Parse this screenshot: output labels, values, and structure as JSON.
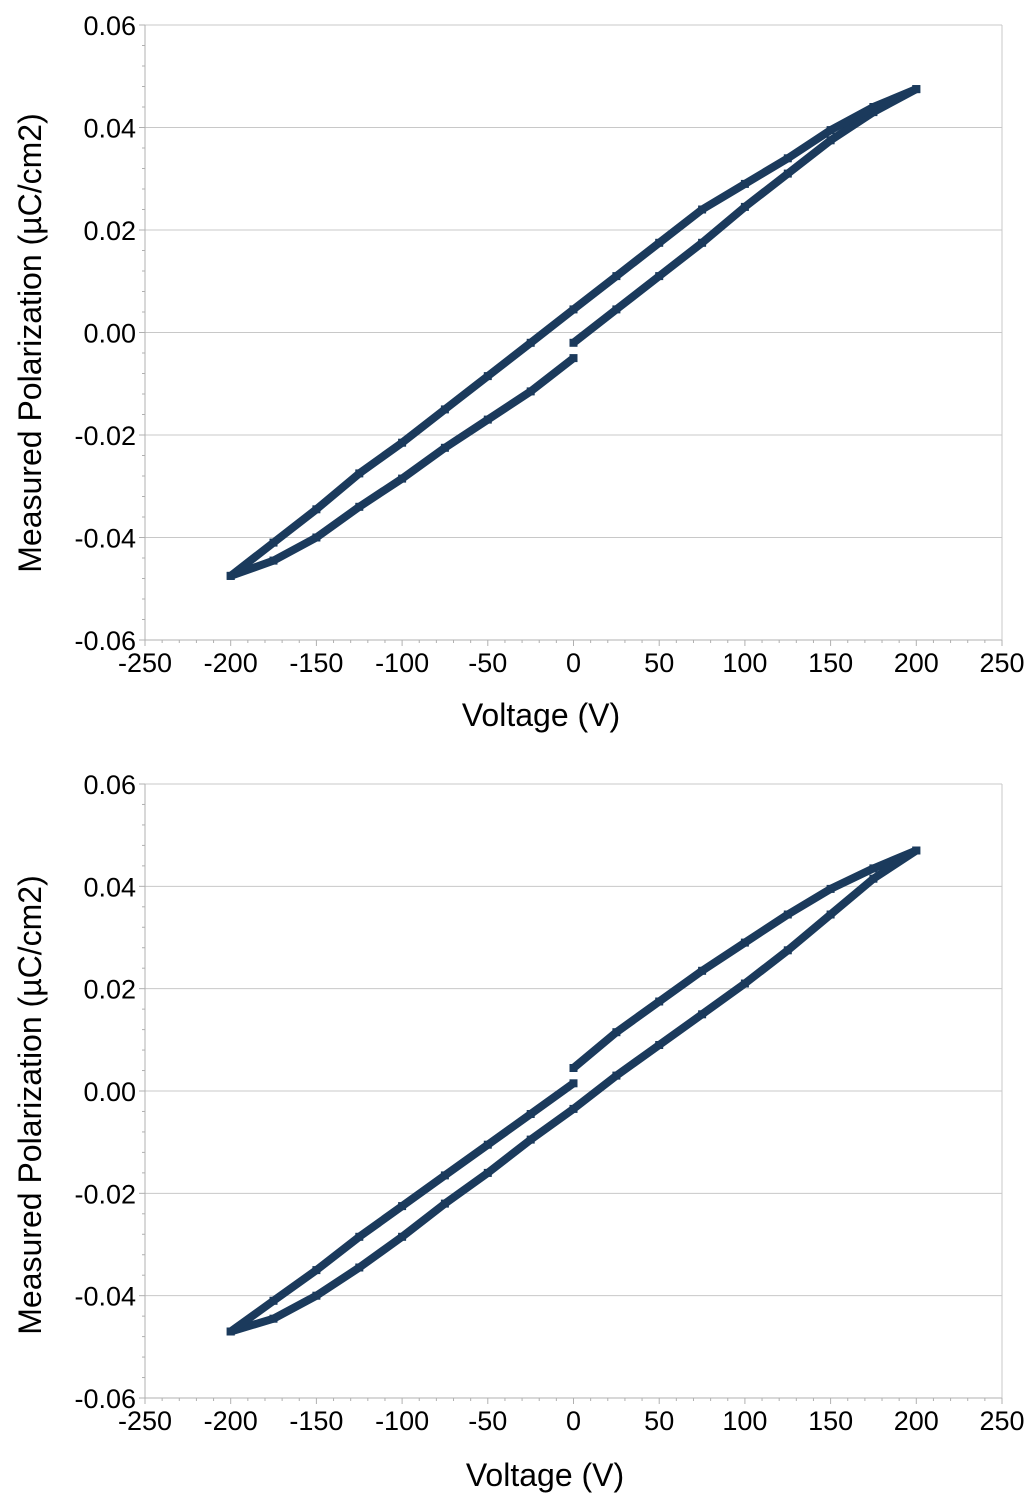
{
  "chart_data": [
    {
      "type": "scatter",
      "xlabel": "Voltage (V)",
      "ylabel": "Measured Polarization (µC/cm2)",
      "xlim": [
        -250,
        250
      ],
      "ylim": [
        -0.06,
        0.06
      ],
      "xticks": [
        -250,
        -200,
        -150,
        -100,
        -50,
        0,
        50,
        100,
        150,
        200,
        250
      ],
      "xtick_labels": [
        "-250",
        "-200",
        "-150",
        "-100",
        "-50",
        "0",
        "50",
        "100",
        "150",
        "200",
        "250"
      ],
      "yticks": [
        0.06,
        0.04,
        0.02,
        0.0,
        -0.02,
        -0.04,
        -0.06
      ],
      "ytick_labels": [
        "0.06",
        "0.04",
        "0.02",
        "0.00",
        "-0.02",
        "-0.04",
        "-0.06"
      ],
      "grid": "horizontal",
      "marker_color": "#1b3a5c",
      "series": [
        {
          "x": [
            0,
            25,
            50,
            75,
            100,
            125,
            150,
            175,
            200
          ],
          "y": [
            -0.002,
            0.0045,
            0.011,
            0.0175,
            0.0245,
            0.031,
            0.0375,
            0.043,
            0.0475
          ]
        },
        {
          "x": [
            200,
            175,
            150,
            125,
            100,
            75,
            50,
            25,
            0,
            -25,
            -50,
            -75,
            -100,
            -125,
            -150,
            -175,
            -200
          ],
          "y": [
            0.0475,
            0.044,
            0.0395,
            0.034,
            0.029,
            0.024,
            0.0175,
            0.011,
            0.0045,
            -0.002,
            -0.0085,
            -0.015,
            -0.0215,
            -0.0275,
            -0.0345,
            -0.041,
            -0.0475
          ]
        },
        {
          "x": [
            -200,
            -175,
            -150,
            -125,
            -100,
            -75,
            -50,
            -25,
            0
          ],
          "y": [
            -0.0475,
            -0.0445,
            -0.04,
            -0.034,
            -0.0285,
            -0.0225,
            -0.017,
            -0.0115,
            -0.005
          ]
        }
      ]
    },
    {
      "type": "scatter",
      "xlabel": "Voltage (V)",
      "ylabel": "Measured Polarization (µC/cm2)",
      "xlim": [
        -250,
        250
      ],
      "ylim": [
        -0.06,
        0.06
      ],
      "xticks": [
        -250,
        -200,
        -150,
        -100,
        -50,
        0,
        50,
        100,
        150,
        200,
        250
      ],
      "xtick_labels": [
        "-250",
        "-200",
        "-150",
        "-100",
        "-50",
        "0",
        "50",
        "100",
        "150",
        "200",
        "250"
      ],
      "yticks": [
        0.06,
        0.04,
        0.02,
        0.0,
        -0.02,
        -0.04,
        -0.06
      ],
      "ytick_labels": [
        "0.06",
        "0.04",
        "0.02",
        "0.00",
        "-0.02",
        "-0.04",
        "-0.06"
      ],
      "grid": "horizontal",
      "marker_color": "#1b3a5c",
      "series": [
        {
          "x": [
            0,
            25,
            50,
            75,
            100,
            125,
            150,
            175,
            200
          ],
          "y": [
            0.0045,
            0.0115,
            0.0175,
            0.0235,
            0.029,
            0.0345,
            0.0395,
            0.0435,
            0.047
          ]
        },
        {
          "x": [
            200,
            175,
            150,
            125,
            100,
            75,
            50,
            25,
            0,
            -25,
            -50,
            -75,
            -100,
            -125,
            -150,
            -175,
            -200
          ],
          "y": [
            0.047,
            0.0415,
            0.0345,
            0.0275,
            0.021,
            0.015,
            0.009,
            0.003,
            -0.0035,
            -0.0095,
            -0.016,
            -0.022,
            -0.0285,
            -0.0345,
            -0.04,
            -0.0445,
            -0.047
          ]
        },
        {
          "x": [
            -200,
            -175,
            -150,
            -125,
            -100,
            -75,
            -50,
            -25,
            0
          ],
          "y": [
            -0.047,
            -0.041,
            -0.035,
            -0.0285,
            -0.0225,
            -0.0165,
            -0.0105,
            -0.0045,
            0.0015
          ]
        }
      ]
    }
  ]
}
